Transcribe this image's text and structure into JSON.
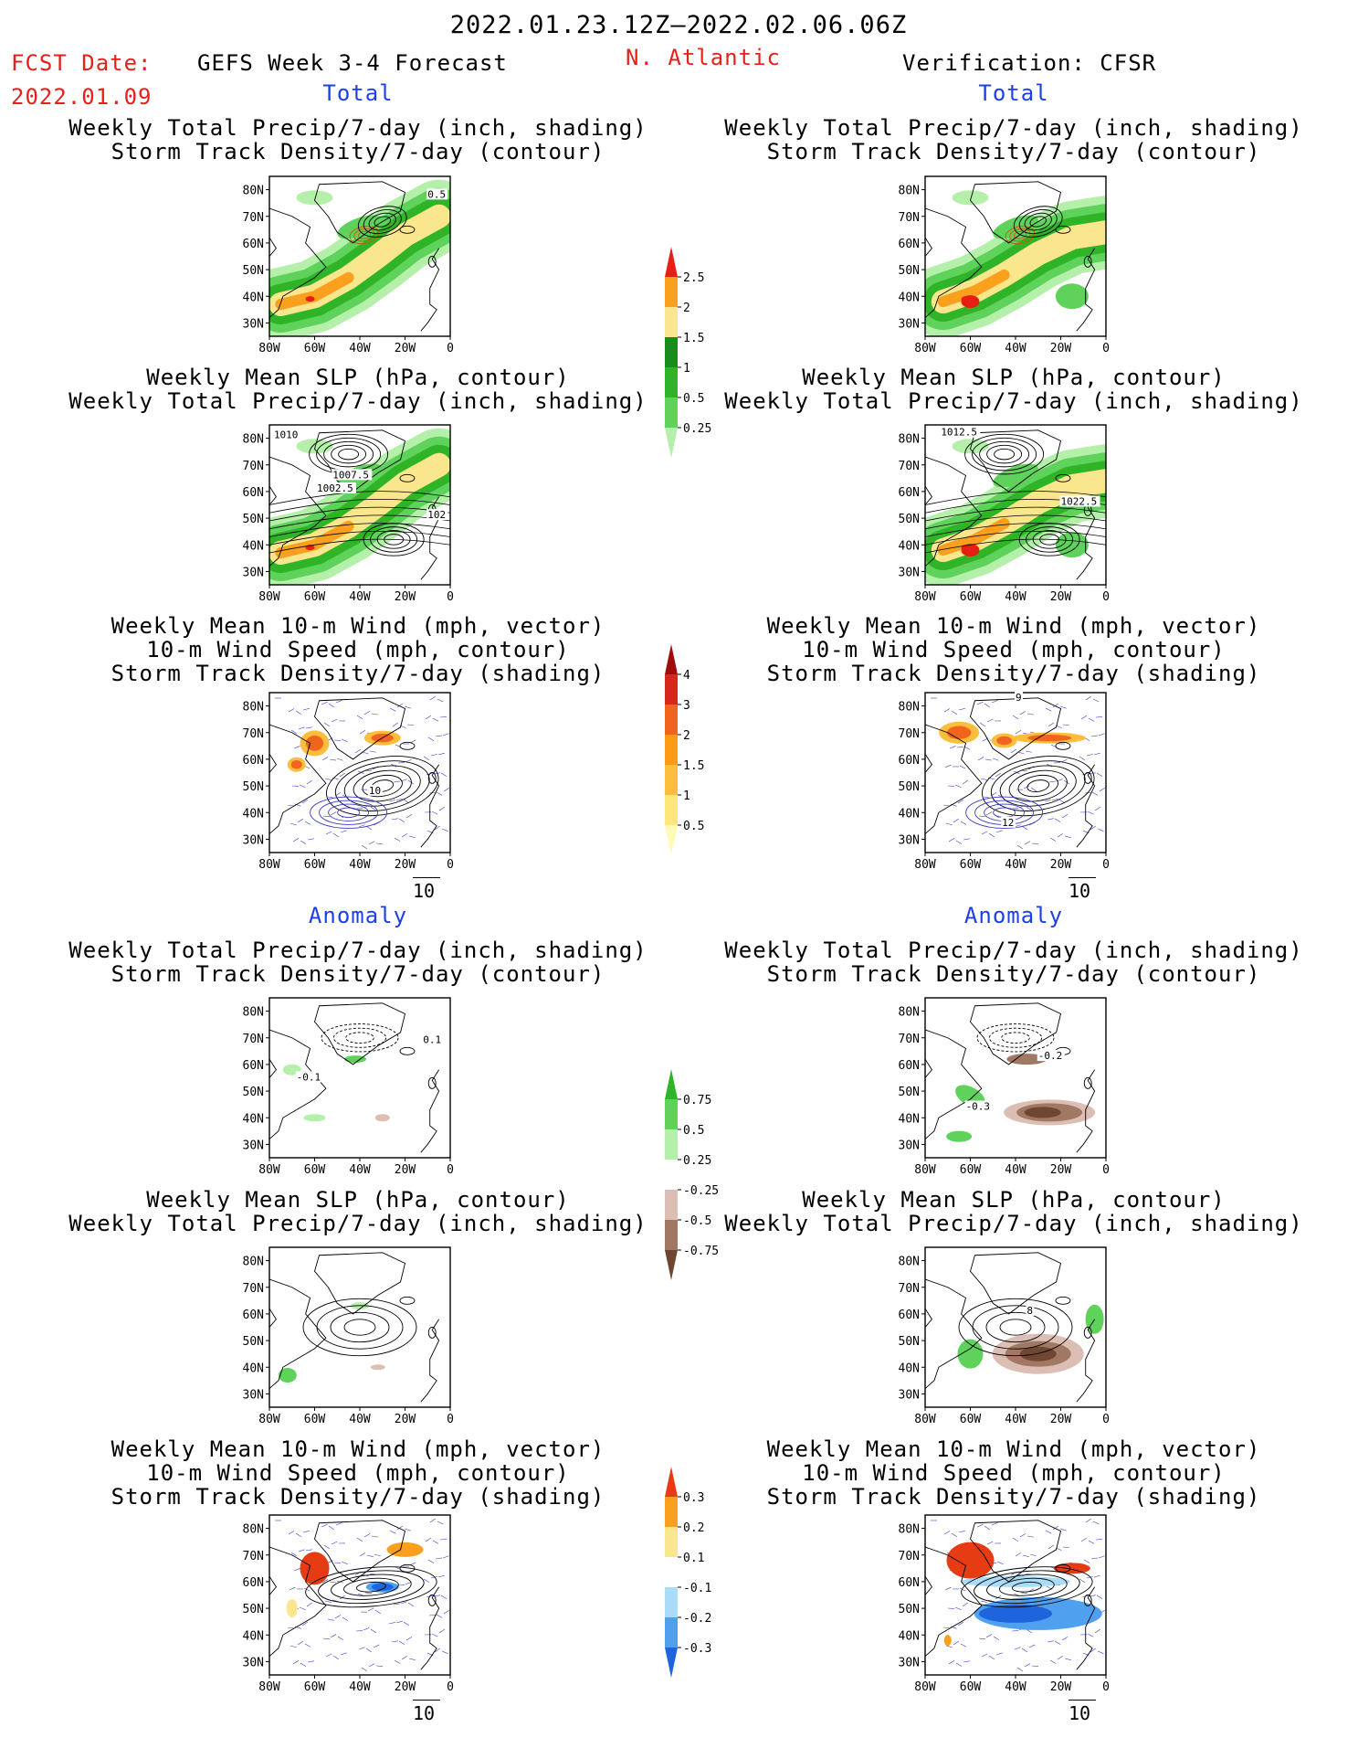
{
  "header": {
    "period": "2022.01.23.12Z–2022.02.06.06Z",
    "fcst_label": "FCST Date:",
    "fcst_date": "2022.01.09",
    "forecast_title": "GEFS Week 3-4 Forecast",
    "region": "N. Atlantic",
    "verification": "Verification: CFSR"
  },
  "sections": {
    "total_label": "Total",
    "anomaly_label": "Anomaly"
  },
  "panel_titles": {
    "precip_track": [
      "Weekly Total Precip/7-day (inch, shading)",
      "Storm Track Density/7-day (contour)"
    ],
    "slp_precip": [
      "Weekly Mean SLP (hPa, contour)",
      "Weekly Total Precip/7-day (inch, shading)"
    ],
    "wind_track": [
      "Weekly Mean 10-m Wind (mph, vector)",
      "10-m Wind Speed (mph, contour)",
      "Storm Track Density/7-day (shading)"
    ]
  },
  "axes": {
    "x_ticks": [
      "80W",
      "60W",
      "40W",
      "20W",
      "0"
    ],
    "y_ticks": [
      "80N",
      "70N",
      "60N",
      "50N",
      "40N",
      "30N"
    ]
  },
  "vector_reference": "10",
  "contour_labels": {
    "fcst_precip_total": [
      "0.5"
    ],
    "fcst_slp_total": [
      "1010",
      "1007.5",
      "1002.5",
      "102"
    ],
    "cfsr_slp_total": [
      "1012.5",
      "1022.5"
    ],
    "fcst_wind_total": [
      "10"
    ],
    "cfsr_wind_total": [
      "9",
      "12"
    ],
    "fcst_precip_anom": [
      "0.1",
      "-0.1"
    ],
    "cfsr_precip_anom": [
      "-0.2",
      "-0.3"
    ],
    "cfsr_slp_anom": [
      "8"
    ]
  },
  "colorbars": {
    "precip_total": {
      "levels": [
        "0.25",
        "0.5",
        "1",
        "1.5",
        "2",
        "2.5"
      ],
      "colors": [
        "#b4f0aa",
        "#5ed25a",
        "#2fb428",
        "#188c1e",
        "#fae68c",
        "#faa01e",
        "#e61e14"
      ]
    },
    "track_total": {
      "levels": [
        "0.5",
        "1",
        "1.5",
        "2",
        "3",
        "4"
      ],
      "colors": [
        "#fffab4",
        "#ffe678",
        "#fcbe3c",
        "#fc9a14",
        "#f0641e",
        "#d7261e",
        "#a00c0c"
      ]
    },
    "precip_anom": {
      "levels": [
        "-0.75",
        "-0.5",
        "-0.25",
        "0.25",
        "0.5",
        "0.75"
      ],
      "colors": [
        "#6e4632",
        "#a07864",
        "#dcbeb4",
        "#ffffff",
        "#b4f0aa",
        "#5ed25a",
        "#2fb428"
      ]
    },
    "track_anom": {
      "levels": [
        "-0.3",
        "-0.2",
        "-0.1",
        "0.1",
        "0.2",
        "0.3"
      ],
      "colors": [
        "#1e64dc",
        "#50a0f0",
        "#aadcfa",
        "#ffffff",
        "#fae68c",
        "#faa01e",
        "#e63c14"
      ]
    }
  }
}
